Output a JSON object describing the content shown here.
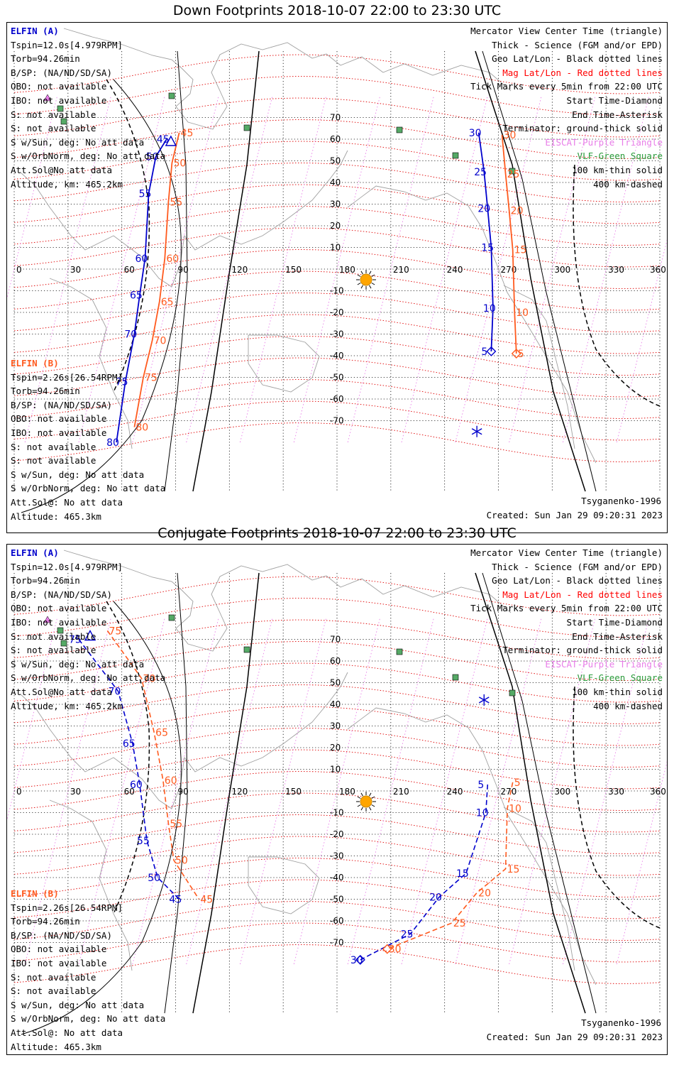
{
  "panels": [
    {
      "id": "down",
      "title": "Down Footprints 2018-10-07 22:00 to 23:30 UTC",
      "elfin_a": {
        "header": "ELFIN (A)",
        "lines": [
          "Tspin=12.0s[4.979RPM]",
          "Torb=94.26min",
          "B/SP: (NA/ND/SD/SA)",
          "OBO: not available",
          "IBO: not available",
          "S: not available",
          "S: not available",
          "S w/Sun, deg: No att data",
          "S w/OrbNorm, deg: No att data",
          "Att.Sol@No att data",
          "Altitude, km: 465.2km"
        ]
      },
      "elfin_b": {
        "header": "ELFIN (B)",
        "lines": [
          "Tspin=2.26s[26.54RPM]",
          "Torb=94.26min",
          "B/SP: (NA/ND/SD/SA)",
          "OBO: not available",
          "IBO: not available",
          "S: not available",
          "S: not available",
          "S w/Sun, deg: No att data",
          "S w/OrbNorm, deg: No att data",
          "Att.Sol@: No att data",
          "Altitude: 465.3km"
        ]
      },
      "legend": [
        "Mercator View Center Time (triangle)",
        "Thick - Science (FGM and/or EPD)",
        "Geo Lat/Lon - Black dotted lines",
        "Mag Lat/Lon - Red dotted lines",
        "Tick Marks every 5min from 22:00 UTC",
        "Start Time-Diamond",
        "End Time-Asterisk",
        "Terminator: ground-thick solid",
        "EISCAT-Purple Triangle",
        "VLF-Green Square",
        "100 km-thin solid",
        "400 km-dashed"
      ],
      "model": "Tsyganenko-1996",
      "created": "Created: Sun Jan 29 09:20:31 2023",
      "track_a_ticks": [
        {
          "t": "45",
          "lon": 85,
          "lat": 60
        },
        {
          "t": "50",
          "lon": 79,
          "lat": 52
        },
        {
          "t": "55",
          "lon": 75,
          "lat": 35
        },
        {
          "t": "60",
          "lon": 73,
          "lat": 5
        },
        {
          "t": "65",
          "lon": 70,
          "lat": -12
        },
        {
          "t": "70",
          "lon": 67,
          "lat": -30
        },
        {
          "t": "75",
          "lon": 62,
          "lat": -52
        },
        {
          "t": "80",
          "lon": 57,
          "lat": -80
        },
        {
          "t": "30",
          "lon": 259,
          "lat": 63
        },
        {
          "t": "25",
          "lon": 262,
          "lat": 45
        },
        {
          "t": "20",
          "lon": 264,
          "lat": 28
        },
        {
          "t": "15",
          "lon": 266,
          "lat": 10
        },
        {
          "t": "10",
          "lon": 267,
          "lat": -18
        },
        {
          "t": "5",
          "lon": 266,
          "lat": -38
        }
      ],
      "track_b_ticks": [
        {
          "t": "45",
          "lon": 92,
          "lat": 63
        },
        {
          "t": "50",
          "lon": 88,
          "lat": 49
        },
        {
          "t": "55",
          "lon": 86,
          "lat": 31
        },
        {
          "t": "60",
          "lon": 84,
          "lat": 5
        },
        {
          "t": "65",
          "lon": 81,
          "lat": -15
        },
        {
          "t": "70",
          "lon": 77,
          "lat": -33
        },
        {
          "t": "75",
          "lon": 72,
          "lat": -50
        },
        {
          "t": "80",
          "lon": 67,
          "lat": -73
        },
        {
          "t": "30",
          "lon": 272,
          "lat": 62
        },
        {
          "t": "25",
          "lon": 274,
          "lat": 44
        },
        {
          "t": "20",
          "lon": 276,
          "lat": 27
        },
        {
          "t": "15",
          "lon": 278,
          "lat": 9
        },
        {
          "t": "10",
          "lon": 279,
          "lat": -20
        },
        {
          "t": "5",
          "lon": 280,
          "lat": -39
        }
      ]
    },
    {
      "id": "conjugate",
      "title": "Conjugate Footprints 2018-10-07 22:00 to 23:30 UTC",
      "elfin_a": {
        "header": "ELFIN (A)",
        "lines": [
          "Tspin=12.0s[4.979RPM]",
          "Torb=94.26min",
          "B/SP: (NA/ND/SD/SA)",
          "OBO: not available",
          "IBO: not available",
          "S: not available",
          "S: not available",
          "S w/Sun, deg: No att data",
          "S w/OrbNorm, deg: No att data",
          "Att.Sol@No att data",
          "Altitude, km: 465.2km"
        ]
      },
      "elfin_b": {
        "header": "ELFIN (B)",
        "lines": [
          "Tspin=2.26s[26.54RPM]",
          "Torb=94.26min",
          "B/SP: (NA/ND/SD/SA)",
          "OBO: not available",
          "IBO: not available",
          "S: not available",
          "S: not available",
          "S w/Sun, deg: No att data",
          "S w/OrbNorm, deg: No att data",
          "Att.Sol@: No att data",
          "Altitude: 465.3km"
        ]
      },
      "legend": [
        "Mercator View Center Time (triangle)",
        "Thick - Science (FGM and/or EPD)",
        "Geo Lat/Lon - Black dotted lines",
        "Mag Lat/Lon - Red dotted lines",
        "Tick Marks every 5min from 22:00 UTC",
        "Start Time-Diamond",
        "End Time-Asterisk",
        "Terminator: ground-thick solid",
        "EISCAT-Purple Triangle",
        "VLF-Green Square",
        "100 km-thin solid",
        "400 km-dashed"
      ],
      "model": "Tsyganenko-1996",
      "created": "Created: Sun Jan 29 09:20:31 2023",
      "track_a_ticks": [
        {
          "t": "75",
          "lon": 36,
          "lat": 70
        },
        {
          "t": "70",
          "lon": 58,
          "lat": 46
        },
        {
          "t": "65",
          "lon": 66,
          "lat": 22
        },
        {
          "t": "60",
          "lon": 70,
          "lat": 3
        },
        {
          "t": "55",
          "lon": 74,
          "lat": -23
        },
        {
          "t": "50",
          "lon": 80,
          "lat": -40
        },
        {
          "t": "45",
          "lon": 92,
          "lat": -50
        },
        {
          "t": "5",
          "lon": 264,
          "lat": 3
        },
        {
          "t": "10",
          "lon": 263,
          "lat": -10
        },
        {
          "t": "15",
          "lon": 252,
          "lat": -38
        },
        {
          "t": "20",
          "lon": 237,
          "lat": -49
        },
        {
          "t": "25",
          "lon": 221,
          "lat": -66
        },
        {
          "t": "30",
          "lon": 193,
          "lat": -78
        }
      ],
      "track_b_ticks": [
        {
          "t": "75",
          "lon": 52,
          "lat": 74
        },
        {
          "t": "70",
          "lon": 71,
          "lat": 52
        },
        {
          "t": "65",
          "lon": 78,
          "lat": 27
        },
        {
          "t": "60",
          "lon": 83,
          "lat": 5
        },
        {
          "t": "55",
          "lon": 86,
          "lat": -15
        },
        {
          "t": "50",
          "lon": 89,
          "lat": -32
        },
        {
          "t": "45",
          "lon": 103,
          "lat": -50
        },
        {
          "t": "5",
          "lon": 278,
          "lat": 4
        },
        {
          "t": "10",
          "lon": 275,
          "lat": -8
        },
        {
          "t": "15",
          "lon": 274,
          "lat": -36
        },
        {
          "t": "20",
          "lon": 258,
          "lat": -47
        },
        {
          "t": "25",
          "lon": 244,
          "lat": -61
        },
        {
          "t": "30",
          "lon": 208,
          "lat": -73
        }
      ]
    }
  ],
  "lat_tick_labels": [
    "70",
    "60",
    "50",
    "40",
    "30",
    "20",
    "10",
    "-10",
    "-20",
    "-30",
    "-40",
    "-50",
    "-60",
    "-70"
  ],
  "lon_tick_labels": [
    "0",
    "30",
    "60",
    "90",
    "120",
    "150",
    "180",
    "210",
    "240",
    "270",
    "300",
    "330",
    "360"
  ],
  "colors": {
    "elfin_a": "#0000cc",
    "elfin_b": "#ff5a1e",
    "mag_grid": "#e00000",
    "geo_grid": "#000000",
    "vlf": "#55aa66",
    "eiscat": "#e87de8",
    "sun": "#ffa500"
  }
}
